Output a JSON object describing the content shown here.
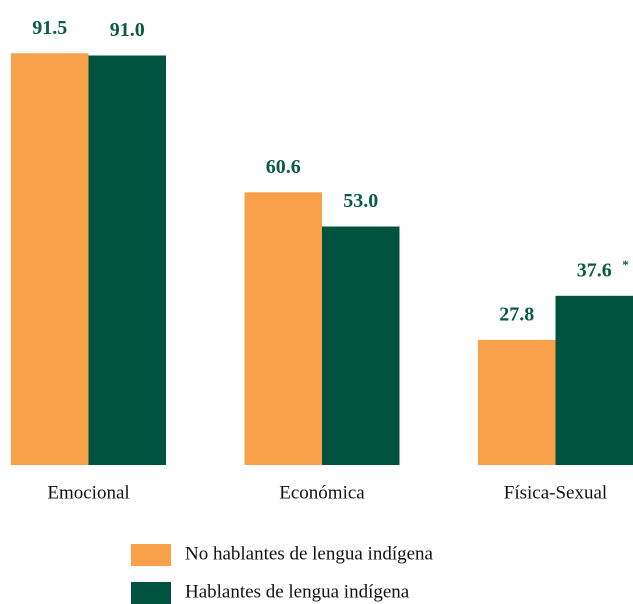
{
  "chart_data": {
    "type": "bar",
    "categories": [
      "Emocional",
      "Económica",
      "Física-Sexual"
    ],
    "series": [
      {
        "name": "No hablantes de lengua indígena",
        "color": "#f9a04a",
        "values": [
          91.5,
          60.6,
          27.8
        ],
        "value_labels": [
          "91.5",
          "60.6",
          "27.8"
        ]
      },
      {
        "name": "Hablantes de lengua indígena",
        "color": "#00533f",
        "values": [
          91.0,
          53.0,
          37.6
        ],
        "value_labels": [
          "91.0",
          "53.0",
          "37.6"
        ]
      }
    ],
    "annotation": "*",
    "value_label_color": "#0b5a45"
  }
}
